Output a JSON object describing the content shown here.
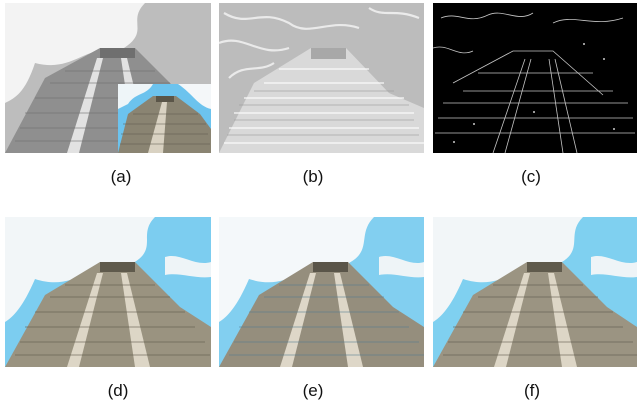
{
  "figure": {
    "panels": [
      {
        "label": "(a)",
        "variant": "grayscale with color inset"
      },
      {
        "label": "(b)",
        "variant": "texture-enhanced gray"
      },
      {
        "label": "(c)",
        "variant": "edge map"
      },
      {
        "label": "(d)",
        "variant": "color result"
      },
      {
        "label": "(e)",
        "variant": "color result"
      },
      {
        "label": "(f)",
        "variant": "color result"
      }
    ]
  },
  "colors": {
    "sky": "#7fd0f0",
    "cloud": "#f2f6f8",
    "stone": "#9a9380",
    "stone_dark": "#5f5a4c",
    "stair": "#d8d2c2",
    "gray_sky": "#cfcfcf",
    "edge_bg": "#000000"
  }
}
